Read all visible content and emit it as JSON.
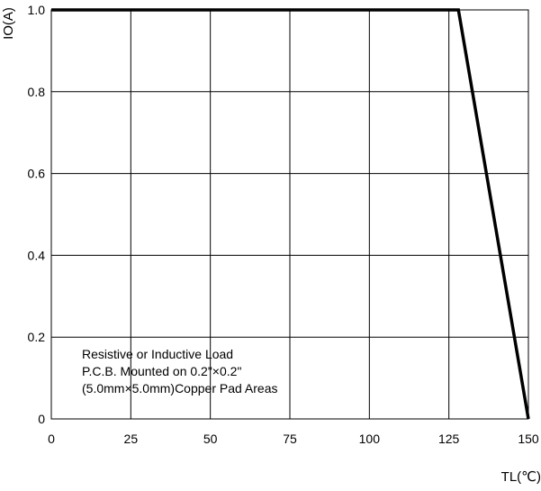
{
  "chart_data": {
    "type": "line",
    "title": "",
    "xlabel": "TL(℃)",
    "ylabel": "IO(A)",
    "xlim": [
      0,
      150
    ],
    "ylim": [
      0,
      1.0
    ],
    "x_ticks": [
      0,
      25,
      50,
      75,
      100,
      125,
      150
    ],
    "x_tick_labels": [
      "0",
      "25",
      "50",
      "75",
      "100",
      "125",
      "150"
    ],
    "y_ticks": [
      0,
      0.2,
      0.4,
      0.6,
      0.8,
      1.0
    ],
    "y_tick_labels": [
      "0",
      "0.2",
      "0.4",
      "0.6",
      "0.8",
      "1.0"
    ],
    "grid": true,
    "series": [
      {
        "x": [
          0,
          128,
          150
        ],
        "y": [
          1.0,
          1.0,
          0
        ]
      }
    ],
    "annotations": [
      "Resistive or Inductive Load",
      "P.C.B. Mounted on 0.2\"×0.2\"",
      "(5.0mm×5.0mm)Copper Pad Areas"
    ]
  }
}
